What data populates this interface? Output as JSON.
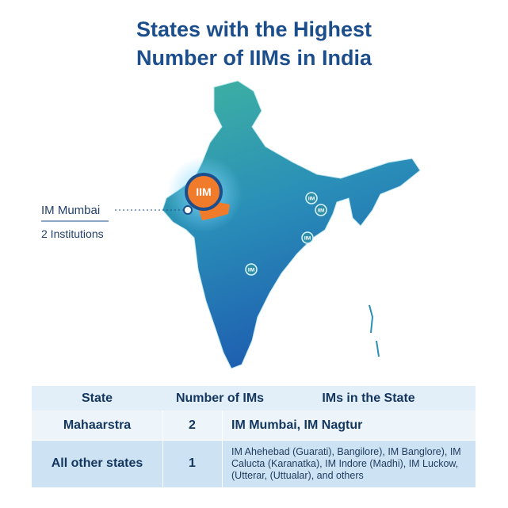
{
  "header": {
    "title_lines": [
      "States with the Highest",
      "Number of IIMs in India"
    ]
  },
  "map": {
    "badge": "IIM",
    "markers": [
      "IIM",
      "IIM",
      "IIM",
      "IIM"
    ],
    "callout": {
      "label": "IM Mumbai",
      "count": "2 Institutions"
    }
  },
  "table": {
    "headers": [
      "State",
      "Number of IMs",
      "IMs in the State"
    ],
    "rows": [
      [
        "Mahaarstra",
        2,
        "IM Mumbai, IM Nagtur"
      ],
      [
        "All other states",
        1,
        "IM Ahehebad (Guarati), Bangilore), IM Banglore), IM Calucta (Karanatka), IM Indore (Madhi), IM Luckow, (Utterar, (Uttualar), and others"
      ]
    ]
  }
}
